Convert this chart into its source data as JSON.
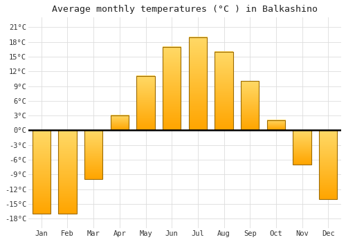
{
  "months": [
    "Jan",
    "Feb",
    "Mar",
    "Apr",
    "May",
    "Jun",
    "Jul",
    "Aug",
    "Sep",
    "Oct",
    "Nov",
    "Dec"
  ],
  "temperatures": [
    -17,
    -17,
    -10,
    3,
    11,
    17,
    19,
    16,
    10,
    2,
    -7,
    -14
  ],
  "title": "Average monthly temperatures (°C ) in Balkashino",
  "bar_color": "#FFA500",
  "bar_edge_color": "#9B6A00",
  "ylim": [
    -20,
    23
  ],
  "yticks": [
    -18,
    -15,
    -12,
    -9,
    -6,
    -3,
    0,
    3,
    6,
    9,
    12,
    15,
    18,
    21
  ],
  "bg_color": "#ffffff",
  "grid_color": "#dddddd",
  "zero_line_color": "#000000",
  "title_fontsize": 9.5,
  "tick_fontsize": 7.5,
  "figwidth": 5.0,
  "figheight": 3.5,
  "dpi": 100
}
